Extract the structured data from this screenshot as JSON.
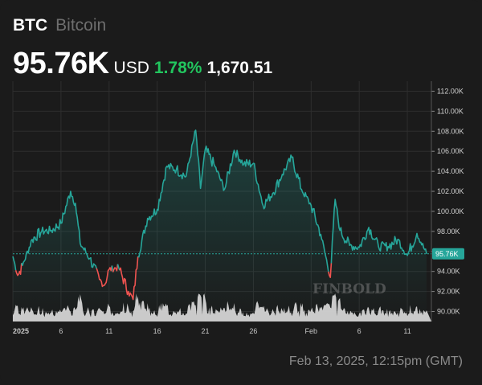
{
  "header": {
    "ticker": "BTC",
    "name": "Bitcoin",
    "price": "95.76K",
    "currency": "USD",
    "change_pct": "1.78%",
    "change_abs": "1,670.51"
  },
  "footer": {
    "timestamp": "Feb 13, 2025, 12:15pm (GMT)"
  },
  "watermark": "FINBOLD",
  "colors": {
    "up": "#26a69a",
    "down": "#ef5350",
    "volume": "#d9d9d9",
    "grid": "#2e2e2e",
    "accent_green": "#22c55e"
  },
  "chart_data": {
    "type": "line",
    "title": "",
    "ylim": [
      89000,
      113000
    ],
    "y_ticks": [
      "112.00K",
      "110.00K",
      "108.00K",
      "106.00K",
      "104.00K",
      "102.00K",
      "100.00K",
      "98.00K",
      "96.00K",
      "94.00K",
      "92.00K",
      "90.00K"
    ],
    "y_tick_values": [
      112000,
      110000,
      108000,
      106000,
      104000,
      102000,
      100000,
      98000,
      96000,
      94000,
      92000,
      90000
    ],
    "x_ticks": [
      "2025",
      "6",
      "11",
      "16",
      "21",
      "26",
      "Feb",
      "6",
      "11"
    ],
    "x_tick_dates": [
      "2025-01-01",
      "2025-01-06",
      "2025-01-11",
      "2025-01-16",
      "2025-01-21",
      "2025-01-26",
      "2025-02-01",
      "2025-02-06",
      "2025-02-11"
    ],
    "reference_line": {
      "value": 95760,
      "label": "95.76K"
    },
    "series": [
      {
        "values": [
          {
            "date": "2025-01-01",
            "price": 95500
          },
          {
            "date": "2025-01-01T12:00",
            "price": 93600
          },
          {
            "date": "2025-01-02",
            "price": 94600
          },
          {
            "date": "2025-01-03",
            "price": 97200
          },
          {
            "date": "2025-01-04",
            "price": 98000
          },
          {
            "date": "2025-01-05",
            "price": 98100
          },
          {
            "date": "2025-01-06",
            "price": 98800
          },
          {
            "date": "2025-01-07",
            "price": 102000
          },
          {
            "date": "2025-01-07T12:00",
            "price": 100800
          },
          {
            "date": "2025-01-08",
            "price": 96800
          },
          {
            "date": "2025-01-09",
            "price": 95300
          },
          {
            "date": "2025-01-10",
            "price": 93200
          },
          {
            "date": "2025-01-10T12:00",
            "price": 92600
          },
          {
            "date": "2025-01-11",
            "price": 94200
          },
          {
            "date": "2025-01-12",
            "price": 94400
          },
          {
            "date": "2025-01-13",
            "price": 92000
          },
          {
            "date": "2025-01-13T12:00",
            "price": 91200
          },
          {
            "date": "2025-01-14",
            "price": 95500
          },
          {
            "date": "2025-01-15",
            "price": 99300
          },
          {
            "date": "2025-01-16",
            "price": 100200
          },
          {
            "date": "2025-01-17",
            "price": 104500
          },
          {
            "date": "2025-01-18",
            "price": 104200
          },
          {
            "date": "2025-01-19",
            "price": 103500
          },
          {
            "date": "2025-01-20",
            "price": 108100
          },
          {
            "date": "2025-01-20T12:00",
            "price": 102300
          },
          {
            "date": "2025-01-21",
            "price": 106200
          },
          {
            "date": "2025-01-22",
            "price": 104500
          },
          {
            "date": "2025-01-23",
            "price": 102200
          },
          {
            "date": "2025-01-24",
            "price": 106100
          },
          {
            "date": "2025-01-25",
            "price": 104700
          },
          {
            "date": "2025-01-26",
            "price": 104800
          },
          {
            "date": "2025-01-27",
            "price": 100600
          },
          {
            "date": "2025-01-28",
            "price": 101800
          },
          {
            "date": "2025-01-29",
            "price": 103700
          },
          {
            "date": "2025-01-30",
            "price": 105400
          },
          {
            "date": "2025-01-31",
            "price": 102200
          },
          {
            "date": "2025-02-01",
            "price": 100600
          },
          {
            "date": "2025-02-02",
            "price": 97700
          },
          {
            "date": "2025-02-03",
            "price": 93400
          },
          {
            "date": "2025-02-03T12:00",
            "price": 101200
          },
          {
            "date": "2025-02-04",
            "price": 98100
          },
          {
            "date": "2025-02-05",
            "price": 96600
          },
          {
            "date": "2025-02-06",
            "price": 96400
          },
          {
            "date": "2025-02-07",
            "price": 98400
          },
          {
            "date": "2025-02-08",
            "price": 96500
          },
          {
            "date": "2025-02-09",
            "price": 96500
          },
          {
            "date": "2025-02-10",
            "price": 97200
          },
          {
            "date": "2025-02-11",
            "price": 95600
          },
          {
            "date": "2025-02-12",
            "price": 97800
          },
          {
            "date": "2025-02-13",
            "price": 95760
          }
        ]
      }
    ]
  }
}
